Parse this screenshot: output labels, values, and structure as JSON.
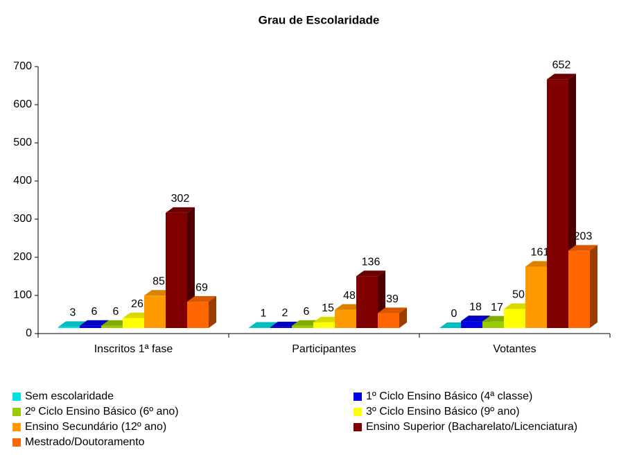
{
  "chart_data": {
    "type": "bar3d",
    "title": "Grau de Escolaridade",
    "categories": [
      "Inscritos 1ª fase",
      "Participantes",
      "Votantes"
    ],
    "series": [
      {
        "name": "Sem escolaridade",
        "color": "#00e0e0",
        "values": [
          3,
          1,
          0
        ]
      },
      {
        "name": "1º Ciclo Ensino Básico (4ª classe)",
        "color": "#0000e0",
        "values": [
          6,
          2,
          18
        ]
      },
      {
        "name": "2º Ciclo Ensino Básico (6º ano)",
        "color": "#99cc00",
        "values": [
          6,
          6,
          17
        ]
      },
      {
        "name": "3º Ciclo Ensino Básico (9º ano)",
        "color": "#ffff00",
        "values": [
          26,
          15,
          50
        ]
      },
      {
        "name": "Ensino Secundário (12º ano)",
        "color": "#ff9900",
        "values": [
          85,
          48,
          161
        ]
      },
      {
        "name": "Ensino Superior (Bacharelato/Licenciatura)",
        "color": "#800000",
        "values": [
          302,
          136,
          652
        ]
      },
      {
        "name": "Mestrado/Doutoramento",
        "color": "#ff6600",
        "values": [
          69,
          39,
          203
        ]
      }
    ],
    "ylim": [
      0,
      700
    ],
    "yticks": [
      0,
      100,
      200,
      300,
      400,
      500,
      600,
      700
    ],
    "grid": false
  }
}
